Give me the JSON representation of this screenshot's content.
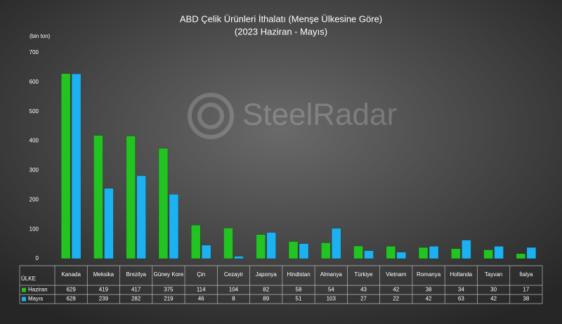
{
  "chart_data": {
    "type": "bar",
    "title": "ABD Çelik Ürünleri İthalatı (Menşe Ülkesine Göre)",
    "subtitle": "(2023 Haziran - Mayıs)",
    "y_axis_label": "(bin ton)",
    "table_header": "ÜLKE",
    "watermark": "SteelRadar",
    "categories": [
      "Kanada",
      "Meksika",
      "Brezilya",
      "Güney Kore",
      "Çin",
      "Cezayir",
      "Japonya",
      "Hindistan",
      "Almanya",
      "Türkiye",
      "Vietnam",
      "Romanya",
      "Hollanda",
      "Tayvan",
      "İtalya"
    ],
    "series": [
      {
        "name": "Haziran",
        "color": "#22c422",
        "values": [
          629,
          419,
          417,
          375,
          114,
          104,
          82,
          58,
          54,
          43,
          42,
          38,
          34,
          30,
          17
        ]
      },
      {
        "name": "Mayıs",
        "color": "#1cb2f2",
        "values": [
          628,
          239,
          282,
          219,
          46,
          8,
          89,
          51,
          103,
          27,
          22,
          42,
          63,
          42,
          38
        ]
      }
    ],
    "ylim": [
      0,
      700
    ],
    "yticks": [
      0,
      100,
      200,
      300,
      400,
      500,
      600,
      700
    ],
    "grid": false
  }
}
